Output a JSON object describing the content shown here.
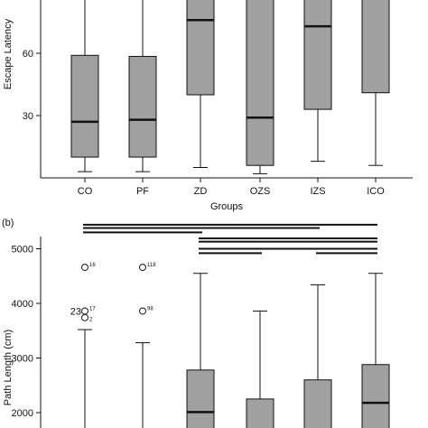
{
  "chart_data": [
    {
      "type": "box",
      "xlabel": "Groups",
      "ylabel": "Escape Latency",
      "categories": [
        "CO",
        "PF",
        "ZD",
        "OZS",
        "IZS",
        "ICO"
      ],
      "yticks": [
        30,
        60
      ],
      "ytick_labels": [
        "30",
        "60"
      ],
      "ylim": [
        0,
        90
      ],
      "boxes": [
        {
          "category": "CO",
          "whisker_low": 3,
          "q1": 10,
          "median": 27,
          "q3": 59,
          "whisker_high": 91
        },
        {
          "category": "PF",
          "whisker_low": 3,
          "q1": 10,
          "median": 28,
          "q3": 58.5,
          "whisker_high": 91
        },
        {
          "category": "ZD",
          "whisker_low": 5,
          "q1": 40,
          "median": 76,
          "q3": 91,
          "whisker_high": 91
        },
        {
          "category": "OZS",
          "whisker_low": 2,
          "q1": 6,
          "median": 29,
          "q3": 91,
          "whisker_high": 91
        },
        {
          "category": "IZS",
          "whisker_low": 8,
          "q1": 33,
          "median": 73,
          "q3": 91,
          "whisker_high": 91
        },
        {
          "category": "ICO",
          "whisker_low": 6,
          "q1": 41,
          "median": 91,
          "q3": 91,
          "whisker_high": 91
        }
      ],
      "box_color": "#a0a0a0"
    },
    {
      "type": "box",
      "panel_label": "(b)",
      "ylabel": "Path Length (cm)",
      "yticks": [
        2000,
        3000,
        4000,
        5000
      ],
      "ytick_labels": [
        "2000",
        "3000",
        "4000",
        "5000"
      ],
      "ylim": [
        1750,
        5500
      ],
      "boxes": [
        {
          "category": "CO",
          "whisker_low": 1700,
          "q1": 1700,
          "median": 1700,
          "q3": 1700,
          "whisker_high": 3520
        },
        {
          "category": "PF",
          "whisker_low": 1700,
          "q1": 1700,
          "median": 1700,
          "q3": 1700,
          "whisker_high": 3280
        },
        {
          "category": "ZD",
          "whisker_low": 1700,
          "q1": 1700,
          "median": 2010,
          "q3": 2780,
          "whisker_high": 4550
        },
        {
          "category": "OZS",
          "whisker_low": 1700,
          "q1": 1700,
          "median": 1700,
          "q3": 2250,
          "whisker_high": 3860
        },
        {
          "category": "IZS",
          "whisker_low": 1700,
          "q1": 1700,
          "median": 1700,
          "q3": 2600,
          "whisker_high": 4340
        },
        {
          "category": "ICO",
          "whisker_low": 1700,
          "q1": 1700,
          "median": 2180,
          "q3": 2880,
          "whisker_high": 4550
        }
      ],
      "outliers": [
        {
          "category": "CO",
          "y": 4660,
          "label": "16"
        },
        {
          "category": "CO",
          "y": 3860,
          "label": "17",
          "prefix": "23"
        },
        {
          "category": "CO",
          "y": 3740,
          "label": "2"
        },
        {
          "category": "PF",
          "y": 4660,
          "label": "118"
        },
        {
          "category": "PF",
          "y": 3860,
          "label": "98"
        }
      ],
      "significance_bars": [
        {
          "from": "CO",
          "to": "ICO",
          "y": 5440
        },
        {
          "from": "CO",
          "to": "IZS",
          "y": 5380
        },
        {
          "from": "CO",
          "to": "ZD",
          "y": 5300
        },
        {
          "from": "ZD",
          "to": "ICO",
          "y": 5190
        },
        {
          "from": "ZD",
          "to": "ICO",
          "y": 5130
        },
        {
          "from": "ZD",
          "to": "ICO",
          "y": 5000
        },
        {
          "from": "ZD",
          "to": "OZS",
          "y": 4920
        },
        {
          "from": "IZS",
          "to": "ICO",
          "y": 4920
        }
      ],
      "box_color": "#a0a0a0"
    }
  ]
}
